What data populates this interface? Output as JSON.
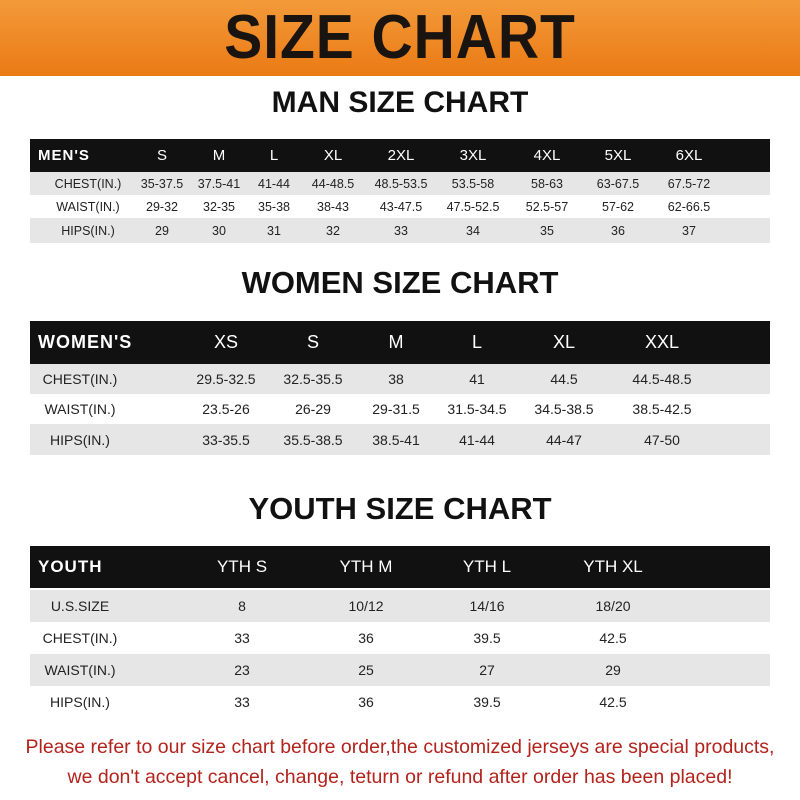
{
  "banner": {
    "title": "SIZE CHART",
    "color": "#ee8a2a"
  },
  "men": {
    "title": "MAN SIZE CHART",
    "headers": [
      "MEN'S",
      "S",
      "M",
      "L",
      "XL",
      "2XL",
      "3XL",
      "4XL",
      "5XL",
      "6XL"
    ],
    "rows": [
      [
        "CHEST(IN.)",
        "35-37.5",
        "37.5-41",
        "41-44",
        "44-48.5",
        "48.5-53.5",
        "53.5-58",
        "58-63",
        "63-67.5",
        "67.5-72"
      ],
      [
        "WAIST(IN.)",
        "29-32",
        "32-35",
        "35-38",
        "38-43",
        "43-47.5",
        "47.5-52.5",
        "52.5-57",
        "57-62",
        "62-66.5"
      ],
      [
        "HIPS(IN.)",
        "29",
        "30",
        "31",
        "32",
        "33",
        "34",
        "35",
        "36",
        "37"
      ]
    ]
  },
  "women": {
    "title": "WOMEN SIZE CHART",
    "headers": [
      "WOMEN'S",
      "XS",
      "S",
      "M",
      "L",
      "XL",
      "XXL"
    ],
    "rows": [
      [
        "CHEST(IN.)",
        "29.5-32.5",
        "32.5-35.5",
        "38",
        "41",
        "44.5",
        "44.5-48.5"
      ],
      [
        "WAIST(IN.)",
        "23.5-26",
        "26-29",
        "29-31.5",
        "31.5-34.5",
        "34.5-38.5",
        "38.5-42.5"
      ],
      [
        "HIPS(IN.)",
        "33-35.5",
        "35.5-38.5",
        "38.5-41",
        "41-44",
        "44-47",
        "47-50"
      ]
    ]
  },
  "youth": {
    "title": "YOUTH SIZE CHART",
    "headers": [
      "YOUTH",
      "YTH S",
      "YTH M",
      "YTH L",
      "YTH XL"
    ],
    "rows": [
      [
        "U.S.SIZE",
        "8",
        "10/12",
        "14/16",
        "18/20"
      ],
      [
        "CHEST(IN.)",
        "33",
        "36",
        "39.5",
        "42.5"
      ],
      [
        "WAIST(IN.)",
        "23",
        "25",
        "27",
        "29"
      ],
      [
        "HIPS(IN.)",
        "33",
        "36",
        "39.5",
        "42.5"
      ]
    ]
  },
  "footer": {
    "line1": "Please refer to our size chart before order,the customized jerseys are special products,",
    "line2": "we don't accept cancel, change, teturn or refund after order has been placed!",
    "color": "#b3231c"
  }
}
